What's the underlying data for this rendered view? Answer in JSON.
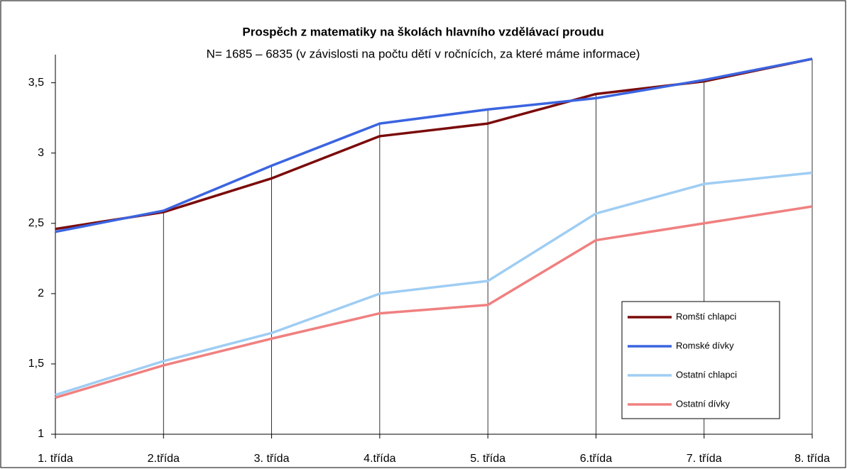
{
  "chart_data": {
    "type": "line",
    "title": "Prospěch z matematiky na školách hlavního vzdělávací proudu",
    "subtitle": "N= 1685 – 6835 (v závislosti na počtu dětí v ročnících, za které máme informace)",
    "categories": [
      "1. třída",
      "2.třída",
      "3. třída",
      "4.třída",
      "5. třída",
      "6.třída",
      "7. třída",
      "8. třída"
    ],
    "series": [
      {
        "name": "Romští chlapci",
        "color": "#7b0a0a",
        "values": [
          2.46,
          2.58,
          2.82,
          3.12,
          3.21,
          3.42,
          3.51,
          3.67
        ]
      },
      {
        "name": "Romské dívky",
        "color": "#3b64e0",
        "values": [
          2.44,
          2.59,
          2.91,
          3.21,
          3.31,
          3.39,
          3.52,
          3.67
        ]
      },
      {
        "name": "Ostatní chlapci",
        "color": "#9fcdf3",
        "values": [
          1.28,
          1.52,
          1.72,
          2.0,
          2.09,
          2.57,
          2.78,
          2.86
        ]
      },
      {
        "name": "Ostatní dívky",
        "color": "#f08080",
        "values": [
          1.26,
          1.49,
          1.68,
          1.86,
          1.92,
          2.38,
          2.5,
          2.62
        ]
      }
    ],
    "ylim": [
      1,
      3.7
    ],
    "yticks": [
      1,
      {
        "value": 1.5,
        "label": "1,5"
      },
      2,
      {
        "value": 2.5,
        "label": "2,5"
      },
      3,
      {
        "value": 3.5,
        "label": "3,5"
      }
    ],
    "legend": "right"
  }
}
